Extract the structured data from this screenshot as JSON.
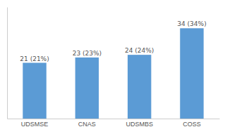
{
  "chart_data": {
    "type": "bar",
    "categories": [
      "UDSMSE",
      "CNAS",
      "UDSMBS",
      "COSS"
    ],
    "values": [
      21,
      23,
      24,
      34
    ],
    "value_labels": [
      "21 (21%)",
      "23 (23%)",
      "24 (24%)",
      "34 (34%)"
    ],
    "color": "#5b9bd5",
    "ylim": [
      0,
      42
    ],
    "tick_labels": "x"
  }
}
